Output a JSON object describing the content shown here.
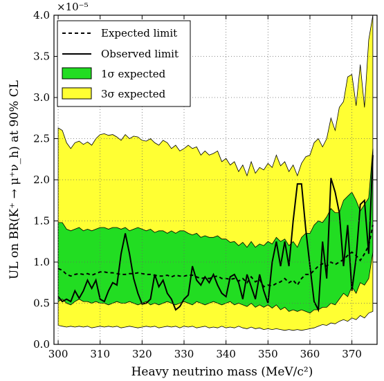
{
  "chart_data": {
    "type": "area",
    "xlabel": "Heavy neutrino mass (MeV/c²)",
    "ylabel": "UL on BR(K⁺ → μ⁺ν_h) at 90% CL",
    "y_multiplier": "×10⁻⁵",
    "xlim": [
      299,
      376
    ],
    "ylim": [
      0.0,
      4.0
    ],
    "x_ticks": [
      300,
      310,
      320,
      330,
      340,
      350,
      360,
      370
    ],
    "y_ticks": [
      "0.0",
      "0.5",
      "1.0",
      "1.5",
      "2.0",
      "2.5",
      "3.0",
      "3.5",
      "4.0"
    ],
    "grid": true,
    "legend_position": "top-left",
    "legend": {
      "expected": "Expected limit",
      "observed": "Observed limit",
      "band1": "1σ expected",
      "band3": "3σ expected"
    },
    "colors": {
      "band1": "#22dd22",
      "band3": "#ffff33",
      "line": "#000000"
    },
    "x": [
      300,
      301,
      302,
      303,
      304,
      305,
      306,
      307,
      308,
      309,
      310,
      311,
      312,
      313,
      314,
      315,
      316,
      317,
      318,
      319,
      320,
      321,
      322,
      323,
      324,
      325,
      326,
      327,
      328,
      329,
      330,
      331,
      332,
      333,
      334,
      335,
      336,
      337,
      338,
      339,
      340,
      341,
      342,
      343,
      344,
      345,
      346,
      347,
      348,
      349,
      350,
      351,
      352,
      353,
      354,
      355,
      356,
      357,
      358,
      359,
      360,
      361,
      362,
      363,
      364,
      365,
      366,
      367,
      368,
      369,
      370,
      371,
      372,
      373,
      374,
      375
    ],
    "series": [
      {
        "name": "3σ upper",
        "values": [
          2.63,
          2.6,
          2.45,
          2.38,
          2.45,
          2.47,
          2.43,
          2.46,
          2.42,
          2.5,
          2.55,
          2.56,
          2.54,
          2.55,
          2.52,
          2.48,
          2.55,
          2.5,
          2.53,
          2.52,
          2.48,
          2.47,
          2.5,
          2.45,
          2.42,
          2.48,
          2.45,
          2.38,
          2.42,
          2.35,
          2.38,
          2.42,
          2.38,
          2.4,
          2.3,
          2.35,
          2.3,
          2.32,
          2.35,
          2.22,
          2.26,
          2.18,
          2.22,
          2.1,
          2.18,
          2.05,
          2.22,
          2.08,
          2.15,
          2.12,
          2.2,
          2.15,
          2.3,
          2.17,
          2.22,
          2.1,
          2.18,
          2.05,
          2.2,
          2.28,
          2.3,
          2.45,
          2.5,
          2.4,
          2.5,
          2.75,
          2.6,
          2.88,
          2.95,
          3.25,
          3.28,
          2.9,
          3.4,
          2.88,
          3.7,
          4.0
        ]
      },
      {
        "name": "1σ upper",
        "values": [
          1.48,
          1.48,
          1.4,
          1.38,
          1.4,
          1.42,
          1.38,
          1.4,
          1.38,
          1.4,
          1.42,
          1.42,
          1.4,
          1.42,
          1.42,
          1.4,
          1.42,
          1.38,
          1.4,
          1.42,
          1.4,
          1.38,
          1.4,
          1.36,
          1.38,
          1.38,
          1.35,
          1.38,
          1.35,
          1.38,
          1.38,
          1.35,
          1.33,
          1.35,
          1.3,
          1.32,
          1.3,
          1.3,
          1.32,
          1.28,
          1.28,
          1.24,
          1.25,
          1.2,
          1.24,
          1.18,
          1.25,
          1.18,
          1.22,
          1.2,
          1.25,
          1.22,
          1.3,
          1.25,
          1.28,
          1.2,
          1.25,
          1.18,
          1.3,
          1.35,
          1.35,
          1.45,
          1.5,
          1.48,
          1.55,
          1.65,
          1.6,
          1.6,
          1.75,
          1.8,
          1.85,
          1.75,
          1.62,
          1.7,
          1.78,
          2.38
        ]
      },
      {
        "name": "1σ lower",
        "values": [
          0.52,
          0.55,
          0.5,
          0.48,
          0.52,
          0.55,
          0.52,
          0.52,
          0.5,
          0.52,
          0.5,
          0.5,
          0.48,
          0.5,
          0.52,
          0.5,
          0.5,
          0.52,
          0.5,
          0.48,
          0.5,
          0.52,
          0.48,
          0.5,
          0.48,
          0.5,
          0.52,
          0.5,
          0.48,
          0.5,
          0.52,
          0.5,
          0.48,
          0.52,
          0.5,
          0.48,
          0.5,
          0.52,
          0.5,
          0.48,
          0.5,
          0.52,
          0.48,
          0.5,
          0.48,
          0.46,
          0.5,
          0.45,
          0.48,
          0.45,
          0.48,
          0.44,
          0.48,
          0.42,
          0.45,
          0.4,
          0.42,
          0.4,
          0.42,
          0.4,
          0.38,
          0.42,
          0.42,
          0.45,
          0.45,
          0.5,
          0.48,
          0.55,
          0.62,
          0.58,
          0.7,
          0.62,
          0.75,
          0.72,
          0.8,
          1.12
        ]
      },
      {
        "name": "3σ lower",
        "values": [
          0.23,
          0.22,
          0.21,
          0.22,
          0.21,
          0.22,
          0.21,
          0.22,
          0.2,
          0.21,
          0.22,
          0.21,
          0.22,
          0.21,
          0.22,
          0.2,
          0.21,
          0.22,
          0.21,
          0.2,
          0.21,
          0.22,
          0.21,
          0.22,
          0.2,
          0.21,
          0.22,
          0.21,
          0.22,
          0.2,
          0.22,
          0.21,
          0.22,
          0.2,
          0.21,
          0.22,
          0.2,
          0.21,
          0.2,
          0.22,
          0.2,
          0.21,
          0.2,
          0.22,
          0.2,
          0.19,
          0.21,
          0.19,
          0.2,
          0.18,
          0.19,
          0.18,
          0.19,
          0.18,
          0.17,
          0.18,
          0.17,
          0.18,
          0.17,
          0.18,
          0.19,
          0.2,
          0.22,
          0.24,
          0.23,
          0.26,
          0.25,
          0.28,
          0.3,
          0.28,
          0.32,
          0.3,
          0.35,
          0.32,
          0.38,
          0.4
        ]
      },
      {
        "name": "Expected limit",
        "values": [
          0.92,
          0.9,
          0.85,
          0.83,
          0.85,
          0.86,
          0.85,
          0.86,
          0.84,
          0.86,
          0.88,
          0.88,
          0.87,
          0.87,
          0.86,
          0.85,
          0.85,
          0.86,
          0.86,
          0.87,
          0.86,
          0.85,
          0.85,
          0.84,
          0.83,
          0.83,
          0.84,
          0.82,
          0.84,
          0.83,
          0.83,
          0.84,
          0.84,
          0.82,
          0.8,
          0.81,
          0.8,
          0.82,
          0.83,
          0.8,
          0.8,
          0.79,
          0.8,
          0.77,
          0.8,
          0.75,
          0.82,
          0.76,
          0.79,
          0.7,
          0.72,
          0.71,
          0.74,
          0.76,
          0.8,
          0.75,
          0.78,
          0.72,
          0.8,
          0.85,
          0.85,
          0.9,
          0.95,
          0.98,
          0.95,
          1.0,
          0.97,
          1.0,
          1.03,
          1.08,
          1.12,
          1.08,
          1.02,
          1.1,
          1.2,
          1.45
        ]
      },
      {
        "name": "Observed limit",
        "values": [
          0.58,
          0.52,
          0.55,
          0.52,
          0.65,
          0.56,
          0.65,
          0.78,
          0.68,
          0.78,
          0.55,
          0.52,
          0.65,
          0.75,
          0.72,
          1.1,
          1.35,
          1.1,
          0.8,
          0.62,
          0.49,
          0.5,
          0.55,
          0.85,
          0.7,
          0.78,
          0.62,
          0.55,
          0.42,
          0.46,
          0.55,
          0.6,
          0.95,
          0.78,
          0.72,
          0.82,
          0.75,
          0.85,
          0.72,
          0.62,
          0.58,
          0.82,
          0.85,
          0.75,
          0.55,
          0.85,
          0.7,
          0.55,
          0.85,
          0.65,
          0.5,
          1.0,
          1.25,
          0.95,
          1.25,
          0.95,
          1.5,
          1.95,
          1.95,
          1.4,
          0.95,
          0.52,
          0.42,
          1.25,
          0.8,
          2.02,
          1.85,
          1.6,
          0.95,
          1.45,
          0.65,
          1.05,
          1.7,
          1.75,
          1.1,
          2.3
        ]
      }
    ]
  }
}
